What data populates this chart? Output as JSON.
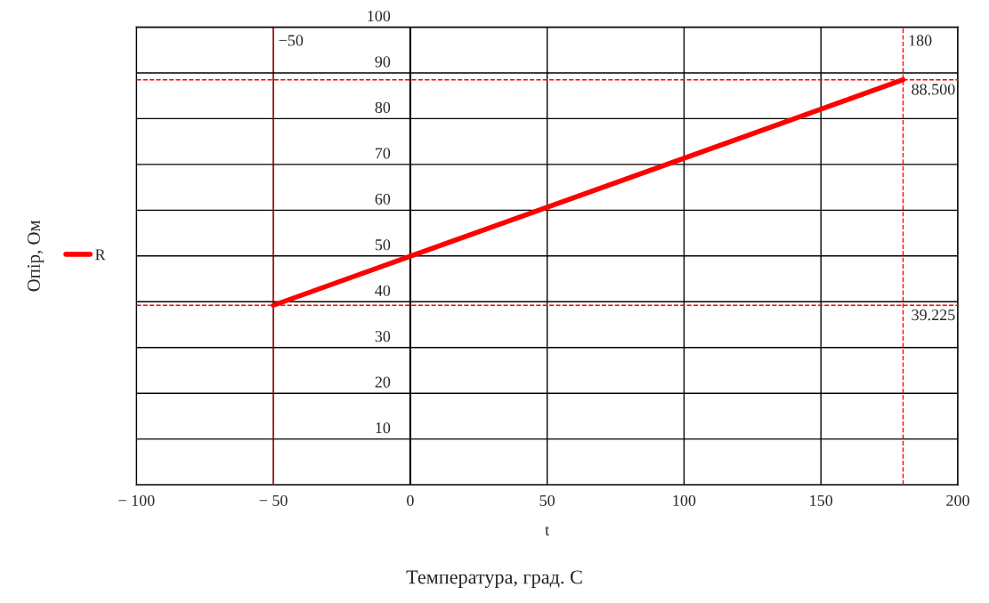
{
  "chart_data": {
    "type": "line",
    "xlabel": "t",
    "ylabel": "Опір, Ом",
    "annotations": [
      "Температура, град. C"
    ],
    "x": [
      -50,
      180
    ],
    "series": [
      {
        "name": "R",
        "color": "#ff0000",
        "values": [
          39.225,
          88.5
        ]
      }
    ],
    "xlim": [
      -100,
      200
    ],
    "ylim": [
      0,
      100
    ],
    "xticks": [
      {
        "value": -100,
        "label": "− 100"
      },
      {
        "value": -50,
        "label": "− 50"
      },
      0,
      50,
      100,
      150,
      200
    ],
    "yticks": [
      {
        "value": 0,
        "label": null
      },
      10,
      20,
      30,
      40,
      50,
      60,
      70,
      80,
      90,
      100
    ],
    "ref_lines": [
      {
        "axis": "x",
        "value": -50,
        "label": "−50",
        "color": "#ff0000",
        "line_style": "dashed"
      },
      {
        "axis": "x",
        "value": 180,
        "label": "180",
        "color": "#ff0000",
        "line_style": "dashed"
      },
      {
        "axis": "y",
        "value": 88.5,
        "label": "88.500",
        "color": "#ff0000",
        "line_style": "dashed"
      },
      {
        "axis": "y",
        "value": 39.225,
        "label": "39.225",
        "color": "#ff0000",
        "line_style": "dashed"
      }
    ],
    "grid": true,
    "legend": "left",
    "line_style": "solid",
    "marker": "none"
  }
}
